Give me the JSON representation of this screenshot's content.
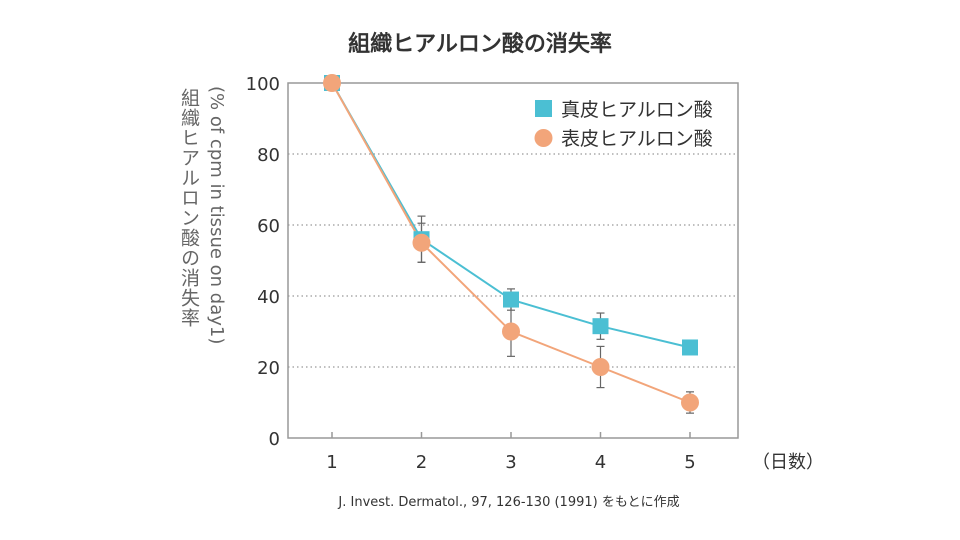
{
  "chart_data": {
    "type": "line",
    "title": "組織ヒアルロン酸の消失率",
    "ylabel_jp": "組織ヒアルロン酸の消失率",
    "ylabel_en": "(% of cpm in tissue on day1)",
    "xlabel": "（日数）",
    "x": [
      1,
      2,
      3,
      4,
      5
    ],
    "x_tick_labels": [
      "1",
      "2",
      "3",
      "4",
      "5"
    ],
    "ylim": [
      0,
      100
    ],
    "y_ticks": [
      0,
      20,
      40,
      60,
      80,
      100
    ],
    "y_tick_labels": [
      "0",
      "20",
      "40",
      "60",
      "80",
      "100"
    ],
    "grid": "horizontal dotted",
    "legend_placement": "top-right",
    "series": [
      {
        "name": "真皮ヒアルロン酸",
        "marker": "square",
        "color": "#4bbfd3",
        "values": [
          100,
          56,
          39,
          31.5,
          25.5
        ],
        "errors": [
          0,
          6.5,
          3,
          3.7,
          0
        ]
      },
      {
        "name": "表皮ヒアルロン酸",
        "marker": "circle",
        "color": "#f2a57a",
        "values": [
          100,
          55,
          30,
          20,
          10
        ],
        "errors": [
          0,
          5.5,
          7,
          5.8,
          3
        ]
      }
    ],
    "source": "J. Invest. Dermatol., 97, 126-130 (1991) をもとに作成"
  }
}
